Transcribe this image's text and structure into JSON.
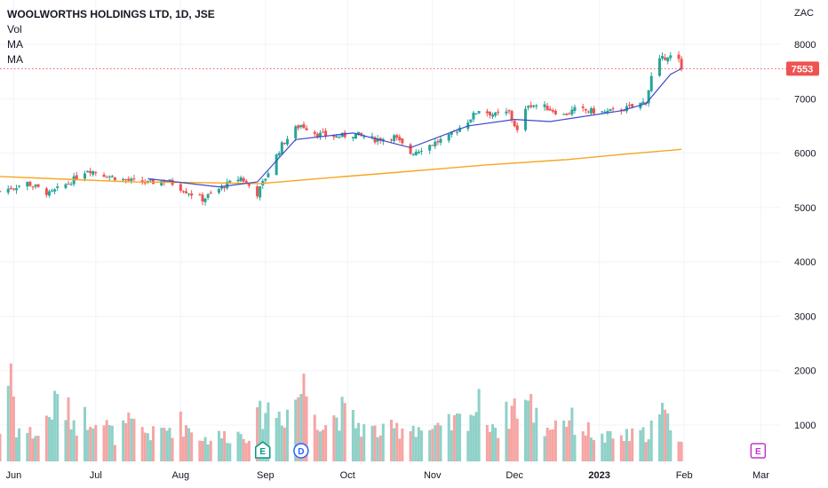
{
  "legend": {
    "title": "WOOLWORTHS HOLDINGS LTD, 1D, JSE",
    "vol": "Vol",
    "ma1": "MA",
    "ma2": "MA"
  },
  "currency": "ZAC",
  "last_price_label": "7553",
  "colors": {
    "up": "#26a69a",
    "down": "#ef5350",
    "vol_up": "#8fd1c8",
    "vol_down": "#f5a5a3",
    "ma_fast": "#3f48cc",
    "ma_slow": "#f6a623",
    "price_line": "#ef5350",
    "grid": "#f0f3fa",
    "marker_e_earn": "#089981",
    "marker_div": "#2962ff",
    "marker_e_future": "#c038cc"
  },
  "markers": [
    {
      "letter": "E",
      "kind": "earnings",
      "date": "2022-08-31"
    },
    {
      "letter": "D",
      "kind": "dividend",
      "date": "2022-09-14"
    },
    {
      "letter": "E",
      "kind": "earnings-upcoming",
      "date": "2023-02-28"
    }
  ],
  "chart_data": {
    "type": "candlestick",
    "title": "WOOLWORTHS HOLDINGS LTD, 1D, JSE",
    "ylabel": "ZAC",
    "y_ticks": [
      8000,
      7000,
      6000,
      5000,
      4000,
      3000,
      2000,
      1000
    ],
    "ylim": [
      500,
      8500
    ],
    "x_ticks": [
      {
        "label": "Jun",
        "date": "2022-06-01"
      },
      {
        "label": "Jul",
        "date": "2022-07-01"
      },
      {
        "label": "Aug",
        "date": "2022-08-01"
      },
      {
        "label": "Sep",
        "date": "2022-09-01"
      },
      {
        "label": "Oct",
        "date": "2022-10-01"
      },
      {
        "label": "Nov",
        "date": "2022-11-01"
      },
      {
        "label": "Dec",
        "date": "2022-12-01"
      },
      {
        "label": "2023",
        "date": "2023-01-01"
      },
      {
        "label": "Feb",
        "date": "2023-02-01"
      },
      {
        "label": "Mar",
        "date": "2023-03-01"
      }
    ],
    "xlim": [
      "2022-05-27",
      "2023-03-08"
    ],
    "last_price": 7553,
    "grid": true,
    "series": [
      {
        "name": "MA",
        "kind": "ma-fast",
        "points": [
          [
            "2022-07-20",
            5530
          ],
          [
            "2022-08-15",
            5380
          ],
          [
            "2022-08-29",
            5470
          ],
          [
            "2022-09-12",
            6250
          ],
          [
            "2022-10-03",
            6370
          ],
          [
            "2022-10-24",
            6100
          ],
          [
            "2022-11-14",
            6500
          ],
          [
            "2022-12-01",
            6620
          ],
          [
            "2022-12-14",
            6580
          ],
          [
            "2023-01-09",
            6780
          ],
          [
            "2023-01-18",
            6910
          ],
          [
            "2023-01-27",
            7450
          ],
          [
            "2023-01-31",
            7553
          ]
        ]
      },
      {
        "name": "MA",
        "kind": "ma-slow",
        "points": [
          [
            "2022-05-27",
            5570
          ],
          [
            "2022-06-20",
            5520
          ],
          [
            "2022-07-15",
            5470
          ],
          [
            "2022-08-05",
            5460
          ],
          [
            "2022-08-30",
            5440
          ],
          [
            "2022-09-20",
            5530
          ],
          [
            "2022-10-20",
            5650
          ],
          [
            "2022-11-20",
            5780
          ],
          [
            "2022-12-20",
            5880
          ],
          [
            "2023-01-10",
            5980
          ],
          [
            "2023-01-31",
            6070
          ]
        ]
      }
    ],
    "keypoints": [
      [
        "2022-05-27",
        5300
      ],
      [
        "2022-06-06",
        5450
      ],
      [
        "2022-06-14",
        5250
      ],
      [
        "2022-06-21",
        5450
      ],
      [
        "2022-06-28",
        5700
      ],
      [
        "2022-07-04",
        5600
      ],
      [
        "2022-07-12",
        5500
      ],
      [
        "2022-07-20",
        5450
      ],
      [
        "2022-07-27",
        5500
      ],
      [
        "2022-08-03",
        5300
      ],
      [
        "2022-08-09",
        5150
      ],
      [
        "2022-08-17",
        5400
      ],
      [
        "2022-08-23",
        5550
      ],
      [
        "2022-08-29",
        5250
      ],
      [
        "2022-09-02",
        5650
      ],
      [
        "2022-09-07",
        6150
      ],
      [
        "2022-09-12",
        6450
      ],
      [
        "2022-09-14",
        6520
      ],
      [
        "2022-09-20",
        6350
      ],
      [
        "2022-09-27",
        6300
      ],
      [
        "2022-10-04",
        6350
      ],
      [
        "2022-10-11",
        6250
      ],
      [
        "2022-10-18",
        6300
      ],
      [
        "2022-10-24",
        6000
      ],
      [
        "2022-10-31",
        6150
      ],
      [
        "2022-11-07",
        6300
      ],
      [
        "2022-11-14",
        6600
      ],
      [
        "2022-11-18",
        6800
      ],
      [
        "2022-11-24",
        6700
      ],
      [
        "2022-11-29",
        6750
      ],
      [
        "2022-12-02",
        6400
      ],
      [
        "2022-12-06",
        6900
      ],
      [
        "2022-12-12",
        6850
      ],
      [
        "2022-12-19",
        6700
      ],
      [
        "2022-12-23",
        6800
      ],
      [
        "2023-01-03",
        6750
      ],
      [
        "2023-01-09",
        6800
      ],
      [
        "2023-01-13",
        6850
      ],
      [
        "2023-01-18",
        6950
      ],
      [
        "2023-01-20",
        7400
      ],
      [
        "2023-01-23",
        7700
      ],
      [
        "2023-01-26",
        7800
      ],
      [
        "2023-01-30",
        7700
      ],
      [
        "2023-01-31",
        7553
      ]
    ],
    "volume_keypoints": [
      [
        "2022-05-27",
        700
      ],
      [
        "2022-05-31",
        2400
      ],
      [
        "2022-06-02",
        800
      ],
      [
        "2022-06-10",
        650
      ],
      [
        "2022-06-17",
        1500
      ],
      [
        "2022-06-24",
        950
      ],
      [
        "2022-07-01",
        1200
      ],
      [
        "2022-07-08",
        600
      ],
      [
        "2022-07-13",
        900
      ],
      [
        "2022-07-22",
        650
      ],
      [
        "2022-08-01",
        950
      ],
      [
        "2022-08-10",
        550
      ],
      [
        "2022-08-19",
        650
      ],
      [
        "2022-08-26",
        700
      ],
      [
        "2022-09-01",
        1300
      ],
      [
        "2022-09-08",
        1150
      ],
      [
        "2022-09-15",
        1850
      ],
      [
        "2022-09-22",
        900
      ],
      [
        "2022-09-29",
        1200
      ],
      [
        "2022-10-07",
        800
      ],
      [
        "2022-10-14",
        700
      ],
      [
        "2022-10-24",
        900
      ],
      [
        "2022-11-02",
        700
      ],
      [
        "2022-11-11",
        1000
      ],
      [
        "2022-11-18",
        1350
      ],
      [
        "2022-11-25",
        800
      ],
      [
        "2022-12-01",
        1400
      ],
      [
        "2022-12-06",
        1450
      ],
      [
        "2022-12-12",
        800
      ],
      [
        "2022-12-19",
        1100
      ],
      [
        "2023-01-02",
        550
      ],
      [
        "2023-01-10",
        600
      ],
      [
        "2023-01-17",
        650
      ],
      [
        "2023-01-24",
        1150
      ],
      [
        "2023-01-31",
        600
      ]
    ]
  }
}
